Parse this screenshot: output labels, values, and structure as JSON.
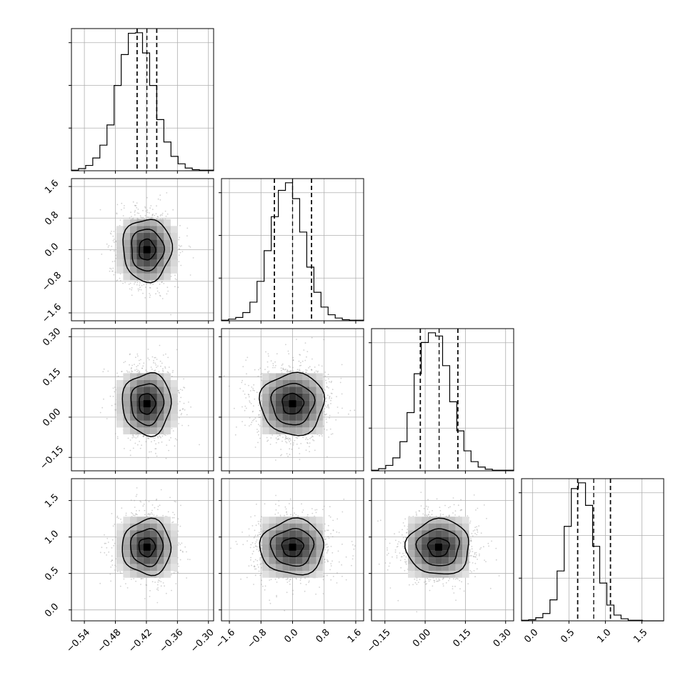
{
  "chart_data": {
    "type": "corner",
    "parameters": [
      {
        "range": [
          -0.565,
          -0.29
        ],
        "ticks": [
          -0.54,
          -0.48,
          -0.42,
          -0.36,
          -0.3
        ],
        "tick_labels": [
          "−0.54",
          "−0.48",
          "−0.42",
          "−0.36",
          "−0.30"
        ],
        "quantiles": [
          -0.438,
          -0.419,
          -0.4
        ],
        "hist_counts": [
          1,
          4,
          10,
          24,
          48,
          86,
          160,
          218,
          258,
          259,
          221,
          160,
          96,
          54,
          27,
          13,
          5,
          2,
          1,
          1
        ]
      },
      {
        "range": [
          -1.8,
          1.8
        ],
        "ticks": [
          -1.6,
          -0.8,
          0.0,
          0.8,
          1.6
        ],
        "tick_labels": [
          "−1.6",
          "−0.8",
          "0.0",
          "0.8",
          "1.6"
        ],
        "quantiles": [
          -0.46,
          0.0,
          0.48
        ],
        "hist_counts": [
          1,
          3,
          6,
          15,
          34,
          72,
          128,
          190,
          238,
          252,
          223,
          162,
          98,
          52,
          25,
          11,
          5,
          2,
          1,
          1
        ]
      },
      {
        "range": [
          -0.2,
          0.33
        ],
        "ticks": [
          -0.15,
          0.0,
          0.15,
          0.3
        ],
        "tick_labels": [
          "−0.15",
          "0.00",
          "0.15",
          "0.30"
        ],
        "quantiles": [
          -0.018,
          0.052,
          0.122
        ],
        "hist_counts": [
          1,
          4,
          10,
          24,
          54,
          108,
          180,
          238,
          256,
          250,
          195,
          128,
          74,
          37,
          17,
          7,
          3,
          1,
          1,
          1
        ]
      },
      {
        "range": [
          -0.15,
          1.8
        ],
        "ticks": [
          0.0,
          0.5,
          1.0,
          1.5
        ],
        "tick_labels": [
          "0.0",
          "0.5",
          "1.0",
          "1.5"
        ],
        "quantiles": [
          0.62,
          0.84,
          1.07
        ],
        "hist_counts": [
          1,
          2,
          6,
          14,
          40,
          95,
          180,
          252,
          263,
          220,
          142,
          72,
          30,
          11,
          4,
          1,
          1,
          0,
          0,
          0
        ]
      }
    ],
    "contours": [
      {
        "x": 1,
        "y": 0,
        "center": [
          -0.419,
          0.0
        ],
        "sigma": [
          0.028,
          0.48
        ],
        "levels": [
          0.55,
          1.1,
          1.65
        ]
      },
      {
        "x": 2,
        "y": 0,
        "center": [
          -0.419,
          0.05
        ],
        "sigma": [
          0.028,
          0.07
        ],
        "levels": [
          0.55,
          1.1,
          1.65
        ]
      },
      {
        "x": 2,
        "y": 1,
        "center": [
          0.0,
          0.05
        ],
        "sigma": [
          0.48,
          0.07
        ],
        "levels": [
          0.55,
          1.1,
          1.65
        ]
      },
      {
        "x": 3,
        "y": 0,
        "center": [
          -0.419,
          0.86
        ],
        "sigma": [
          0.028,
          0.23
        ],
        "levels": [
          0.55,
          1.1,
          1.65
        ]
      },
      {
        "x": 3,
        "y": 1,
        "center": [
          0.0,
          0.86
        ],
        "sigma": [
          0.48,
          0.23
        ],
        "levels": [
          0.55,
          1.1,
          1.65
        ]
      },
      {
        "x": 3,
        "y": 2,
        "center": [
          0.05,
          0.86
        ],
        "sigma": [
          0.07,
          0.23
        ],
        "levels": [
          0.55,
          1.1,
          1.65
        ]
      }
    ],
    "xlabel": "",
    "ylabel": "",
    "grid": true
  }
}
